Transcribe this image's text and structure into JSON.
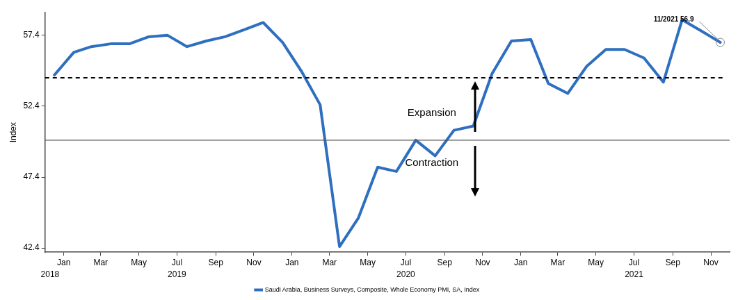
{
  "chart_data": {
    "type": "line",
    "ylabel": "Index",
    "x": [
      "2018-12-31",
      "2019-01-31",
      "2019-02-28",
      "2019-03-31",
      "2019-04-30",
      "2019-05-31",
      "2019-06-30",
      "2019-07-31",
      "2019-08-31",
      "2019-09-30",
      "2019-10-31",
      "2019-11-30",
      "2019-12-31",
      "2020-01-31",
      "2020-02-29",
      "2020-03-31",
      "2020-04-30",
      "2020-05-31",
      "2020-06-30",
      "2020-07-31",
      "2020-08-31",
      "2020-09-30",
      "2020-10-31",
      "2020-11-30",
      "2020-12-31",
      "2021-01-31",
      "2021-02-28",
      "2021-03-31",
      "2021-04-30",
      "2021-05-31",
      "2021-06-30",
      "2021-07-31",
      "2021-08-31",
      "2021-09-30",
      "2021-10-31",
      "2021-11-30"
    ],
    "series": [
      {
        "name": "Saudi Arabia, Business Surveys, Composite, Whole Economy PMI, SA, Index",
        "color": "#2e6fbf",
        "values": [
          54.6,
          56.2,
          56.6,
          56.8,
          56.8,
          57.3,
          57.4,
          56.6,
          57.0,
          57.3,
          57.8,
          58.3,
          56.9,
          54.8,
          52.5,
          42.5,
          44.5,
          48.1,
          47.8,
          50.0,
          48.9,
          50.7,
          51.0,
          54.7,
          57.0,
          57.1,
          54.0,
          53.3,
          55.2,
          56.4,
          56.4,
          55.8,
          54.1,
          58.5,
          57.7,
          56.9
        ]
      }
    ],
    "ylim": [
      42.1,
      59.0
    ],
    "yticks": [
      42.4,
      47.4,
      52.4,
      57.4
    ],
    "xlim": [
      "2018-12-16",
      "2021-12-15"
    ],
    "x2lim": [
      "2018-12-16",
      "2021-12-15"
    ],
    "x2ticks": [
      {
        "value": "2018-12-24",
        "label": "2018"
      },
      {
        "value": "2019-07-15",
        "label": "2019"
      },
      {
        "value": "2020-07-15",
        "label": "2020"
      },
      {
        "value": "2021-07-15",
        "label": "2021"
      }
    ],
    "xticks": [
      {
        "value": "2019-01-15",
        "label": "Jan"
      },
      {
        "value": "2019-03-15",
        "label": "Mar"
      },
      {
        "value": "2019-05-15",
        "label": "May"
      },
      {
        "value": "2019-07-15",
        "label": "Jul"
      },
      {
        "value": "2019-09-15",
        "label": "Sep"
      },
      {
        "value": "2019-11-15",
        "label": "Nov"
      },
      {
        "value": "2020-01-15",
        "label": "Jan"
      },
      {
        "value": "2020-03-15",
        "label": "Mar"
      },
      {
        "value": "2020-05-15",
        "label": "May"
      },
      {
        "value": "2020-07-15",
        "label": "Jul"
      },
      {
        "value": "2020-09-15",
        "label": "Sep"
      },
      {
        "value": "2020-11-15",
        "label": "Nov"
      },
      {
        "value": "2021-01-15",
        "label": "Jan"
      },
      {
        "value": "2021-03-15",
        "label": "Mar"
      },
      {
        "value": "2021-05-15",
        "label": "May"
      },
      {
        "value": "2021-07-15",
        "label": "Jul"
      },
      {
        "value": "2021-09-15",
        "label": "Sep"
      },
      {
        "value": "2021-11-15",
        "label": "Nov"
      }
    ],
    "ref_lines": [
      {
        "axis": "y",
        "value": 54.4,
        "line_style": "dashed",
        "color": "#000000"
      },
      {
        "axis": "y",
        "value": 50.0,
        "line_style": "solid",
        "color": "#555555"
      }
    ],
    "annotations": [
      "Expansion",
      "Contraction",
      {
        "text": "11/2021 56.9",
        "x": "2021-11-30",
        "y": 56.9
      }
    ],
    "legend": "bottom",
    "grid": false,
    "marker": "none",
    "line_style": "solid"
  }
}
